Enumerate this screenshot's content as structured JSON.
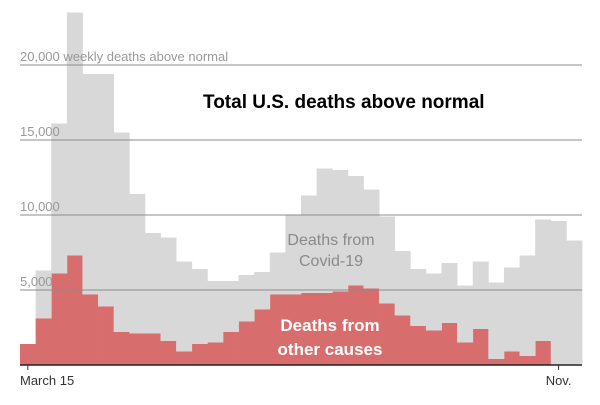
{
  "chart_data": {
    "type": "bar",
    "title": "Total U.S. deaths above normal",
    "ylabel": "weekly deaths above normal",
    "ylim": [
      0,
      25000
    ],
    "yticks": [
      {
        "value": 5000,
        "label": "5,000"
      },
      {
        "value": 10000,
        "label": "10,000"
      },
      {
        "value": 15000,
        "label": "15,000"
      },
      {
        "value": 20000,
        "label": "20,000 weekly deaths above normal"
      }
    ],
    "xticks": [
      {
        "index": 0,
        "label": "March 15"
      },
      {
        "index": 34,
        "label": "Nov."
      }
    ],
    "grid": true,
    "stacked": true,
    "series": [
      {
        "name": "Deaths from other causes",
        "color": "#d86d6d",
        "values": [
          1400,
          3100,
          6100,
          7300,
          4700,
          3900,
          2200,
          2100,
          2100,
          1600,
          900,
          1400,
          1500,
          2200,
          2900,
          3700,
          4700,
          4700,
          4800,
          4800,
          4900,
          5300,
          5100,
          4100,
          3300,
          2600,
          2300,
          2800,
          1500,
          2400,
          400,
          900,
          600,
          1600,
          0,
          0
        ]
      },
      {
        "name": "Deaths from Covid-19",
        "color": "#d8d8d8",
        "values": [
          0,
          3200,
          10000,
          16200,
          14700,
          15500,
          13300,
          9300,
          6700,
          6900,
          6000,
          5000,
          4100,
          3400,
          3100,
          2500,
          2800,
          5300,
          6500,
          8300,
          8100,
          7300,
          6600,
          5800,
          4300,
          3800,
          3800,
          4000,
          3800,
          4500,
          5100,
          5600,
          6700,
          8100,
          9600,
          8300
        ]
      }
    ],
    "annotations": {
      "covid_label_line1": "Deaths from",
      "covid_label_line2": "Covid-19",
      "other_label_line1": "Deaths from",
      "other_label_line2": "other causes"
    }
  }
}
